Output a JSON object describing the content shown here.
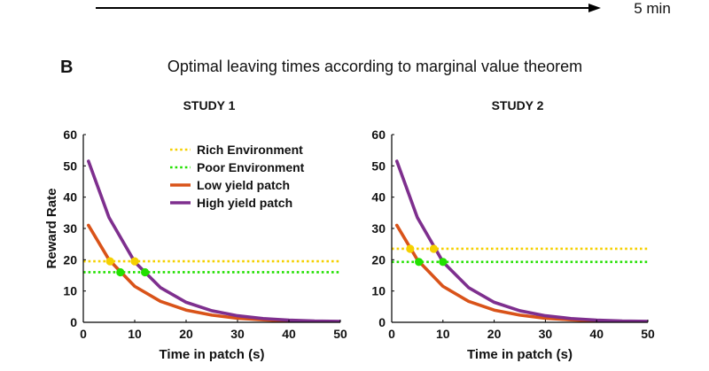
{
  "timeline": {
    "label": "5 min"
  },
  "panel": {
    "letter": "B",
    "title": "Optimal leaving times according to marginal value theorem"
  },
  "colors": {
    "rich": "#f5d000",
    "poor": "#22e000",
    "low": "#d95319",
    "high": "#7e2f8e",
    "axis": "#000000"
  },
  "chart_data": [
    {
      "type": "line",
      "title": "STUDY 1",
      "xlabel": "Time in patch (s)",
      "ylabel": "Reward Rate",
      "xlim": [
        0,
        50
      ],
      "ylim": [
        0,
        60
      ],
      "xticks": [
        0,
        10,
        20,
        30,
        40,
        50
      ],
      "yticks": [
        0,
        10,
        20,
        30,
        40,
        50,
        60
      ],
      "legend_position": "top-right",
      "series": [
        {
          "name": "Rich Environment",
          "style": "dotted",
          "color": "#f5d000",
          "x": [
            0,
            50
          ],
          "y": [
            19.5,
            19.5
          ]
        },
        {
          "name": "Poor Environment",
          "style": "dotted",
          "color": "#22e000",
          "x": [
            0,
            50
          ],
          "y": [
            16,
            16
          ]
        },
        {
          "name": "Low yield patch",
          "style": "solid",
          "color": "#d95319",
          "x": [
            1,
            5,
            10,
            15,
            20,
            25,
            30,
            35,
            40,
            45,
            50
          ],
          "y": [
            31,
            20,
            11.5,
            6.7,
            3.9,
            2.3,
            1.3,
            0.8,
            0.4,
            0.3,
            0.2
          ]
        },
        {
          "name": "High yield patch",
          "style": "solid",
          "color": "#7e2f8e",
          "x": [
            1,
            5,
            10,
            15,
            20,
            25,
            30,
            35,
            40,
            45,
            50
          ],
          "y": [
            51.5,
            33.5,
            19.3,
            11.1,
            6.4,
            3.7,
            2.1,
            1.2,
            0.7,
            0.4,
            0.3
          ]
        }
      ],
      "markers": [
        {
          "x": 5.2,
          "y": 19.5,
          "color": "#f5d000"
        },
        {
          "x": 10.0,
          "y": 19.5,
          "color": "#f5d000"
        },
        {
          "x": 7.2,
          "y": 16,
          "color": "#22e000"
        },
        {
          "x": 12.0,
          "y": 16,
          "color": "#22e000"
        }
      ]
    },
    {
      "type": "line",
      "title": "STUDY 2",
      "xlabel": "Time in patch (s)",
      "ylabel": "",
      "xlim": [
        0,
        50
      ],
      "ylim": [
        0,
        60
      ],
      "xticks": [
        0,
        10,
        20,
        30,
        40,
        50
      ],
      "yticks": [
        0,
        10,
        20,
        30,
        40,
        50,
        60
      ],
      "series": [
        {
          "name": "Rich Environment",
          "style": "dotted",
          "color": "#f5d000",
          "x": [
            0,
            50
          ],
          "y": [
            23.5,
            23.5
          ]
        },
        {
          "name": "Poor Environment",
          "style": "dotted",
          "color": "#22e000",
          "x": [
            0,
            50
          ],
          "y": [
            19.3,
            19.3
          ]
        },
        {
          "name": "Low yield patch",
          "style": "solid",
          "color": "#d95319",
          "x": [
            1,
            5,
            10,
            15,
            20,
            25,
            30,
            35,
            40,
            45,
            50
          ],
          "y": [
            31,
            20,
            11.5,
            6.7,
            3.9,
            2.3,
            1.3,
            0.8,
            0.4,
            0.3,
            0.2
          ]
        },
        {
          "name": "High yield patch",
          "style": "solid",
          "color": "#7e2f8e",
          "x": [
            1,
            5,
            10,
            15,
            20,
            25,
            30,
            35,
            40,
            45,
            50
          ],
          "y": [
            51.5,
            33.5,
            19.3,
            11.1,
            6.4,
            3.7,
            2.1,
            1.2,
            0.7,
            0.4,
            0.3
          ]
        }
      ],
      "markers": [
        {
          "x": 3.6,
          "y": 23.5,
          "color": "#f5d000"
        },
        {
          "x": 8.2,
          "y": 23.5,
          "color": "#f5d000"
        },
        {
          "x": 5.3,
          "y": 19.3,
          "color": "#22e000"
        },
        {
          "x": 10.0,
          "y": 19.3,
          "color": "#22e000"
        }
      ]
    }
  ]
}
